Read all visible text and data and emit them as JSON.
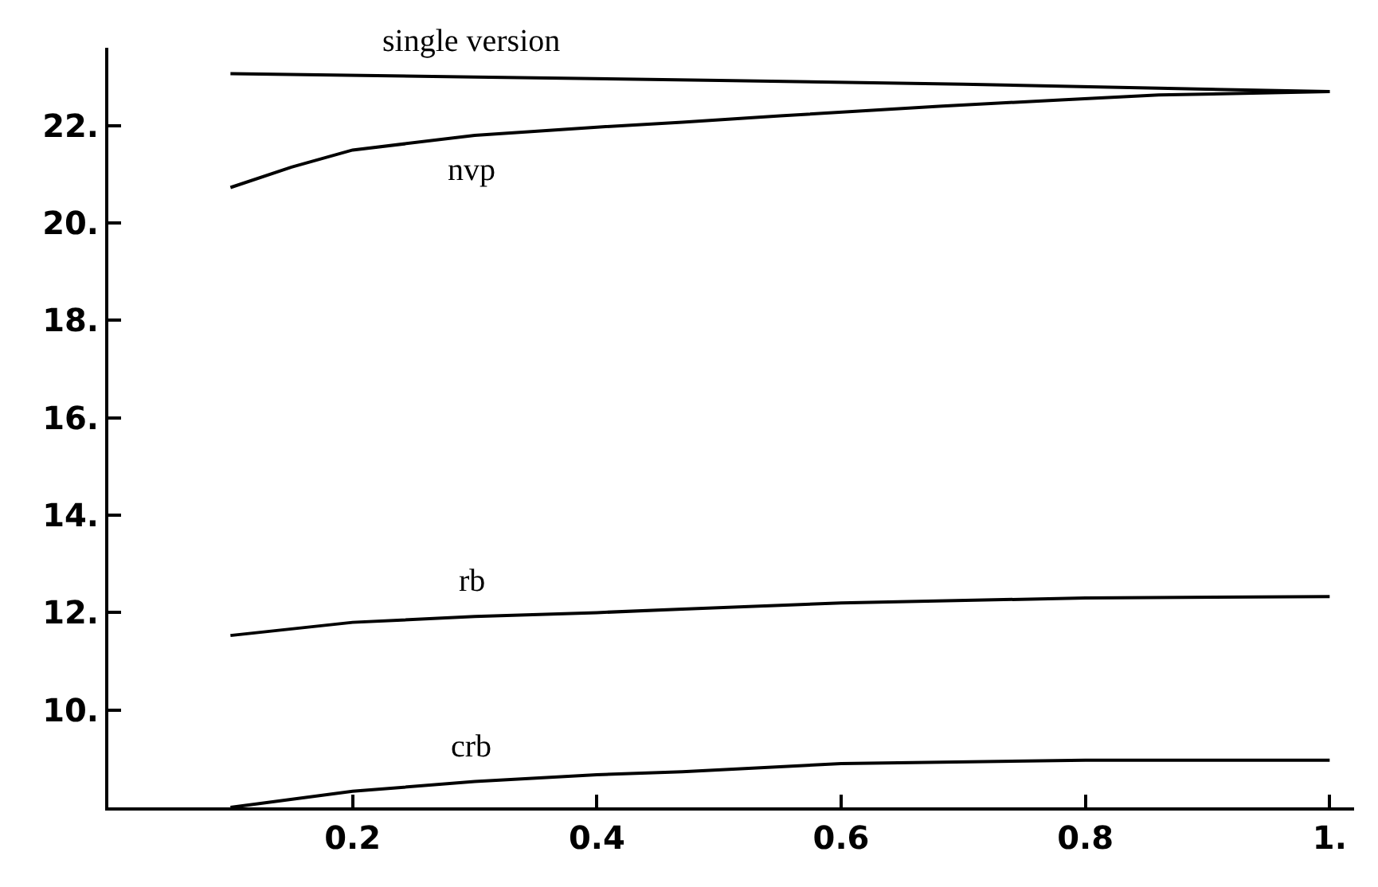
{
  "chart_data": {
    "type": "line",
    "xlim": [
      0,
      1.02
    ],
    "ylim": [
      8,
      23.6
    ],
    "xticks": [
      {
        "value": 0.2,
        "label": "0.2"
      },
      {
        "value": 0.4,
        "label": "0.4"
      },
      {
        "value": 0.6,
        "label": "0.6"
      },
      {
        "value": 0.8,
        "label": "0.8"
      },
      {
        "value": 1,
        "label": "1."
      }
    ],
    "yticks": [
      {
        "value": 10,
        "label": "10."
      },
      {
        "value": 12,
        "label": "12."
      },
      {
        "value": 14,
        "label": "14."
      },
      {
        "value": 16,
        "label": "16."
      },
      {
        "value": 18,
        "label": "18."
      },
      {
        "value": 20,
        "label": "20."
      },
      {
        "value": 22,
        "label": "22."
      }
    ],
    "grid": false,
    "legend": false,
    "marker": "none",
    "line_style": "solid",
    "series": [
      {
        "name": "single version",
        "color": "#000000",
        "x": [
          0.1,
          0.3,
          0.5,
          0.7,
          0.86,
          1.0
        ],
        "values": [
          23.07,
          23.0,
          22.93,
          22.85,
          22.77,
          22.7
        ]
      },
      {
        "name": "nvp",
        "color": "#000000",
        "x": [
          0.1,
          0.15,
          0.2,
          0.3,
          0.4,
          0.47,
          0.55,
          0.68,
          0.78,
          0.86,
          1.0
        ],
        "values": [
          20.73,
          21.15,
          21.5,
          21.8,
          21.97,
          22.07,
          22.2,
          22.4,
          22.53,
          22.63,
          22.7
        ]
      },
      {
        "name": "rb",
        "color": "#000000",
        "x": [
          0.1,
          0.2,
          0.3,
          0.4,
          0.47,
          0.6,
          0.8,
          1.0
        ],
        "values": [
          11.53,
          11.8,
          11.92,
          12.0,
          12.07,
          12.2,
          12.3,
          12.33
        ]
      },
      {
        "name": "crb",
        "color": "#000000",
        "x": [
          0.1,
          0.2,
          0.3,
          0.4,
          0.47,
          0.6,
          0.8,
          1.0
        ],
        "values": [
          8.0,
          8.33,
          8.53,
          8.67,
          8.73,
          8.9,
          8.97,
          8.97
        ]
      }
    ]
  }
}
